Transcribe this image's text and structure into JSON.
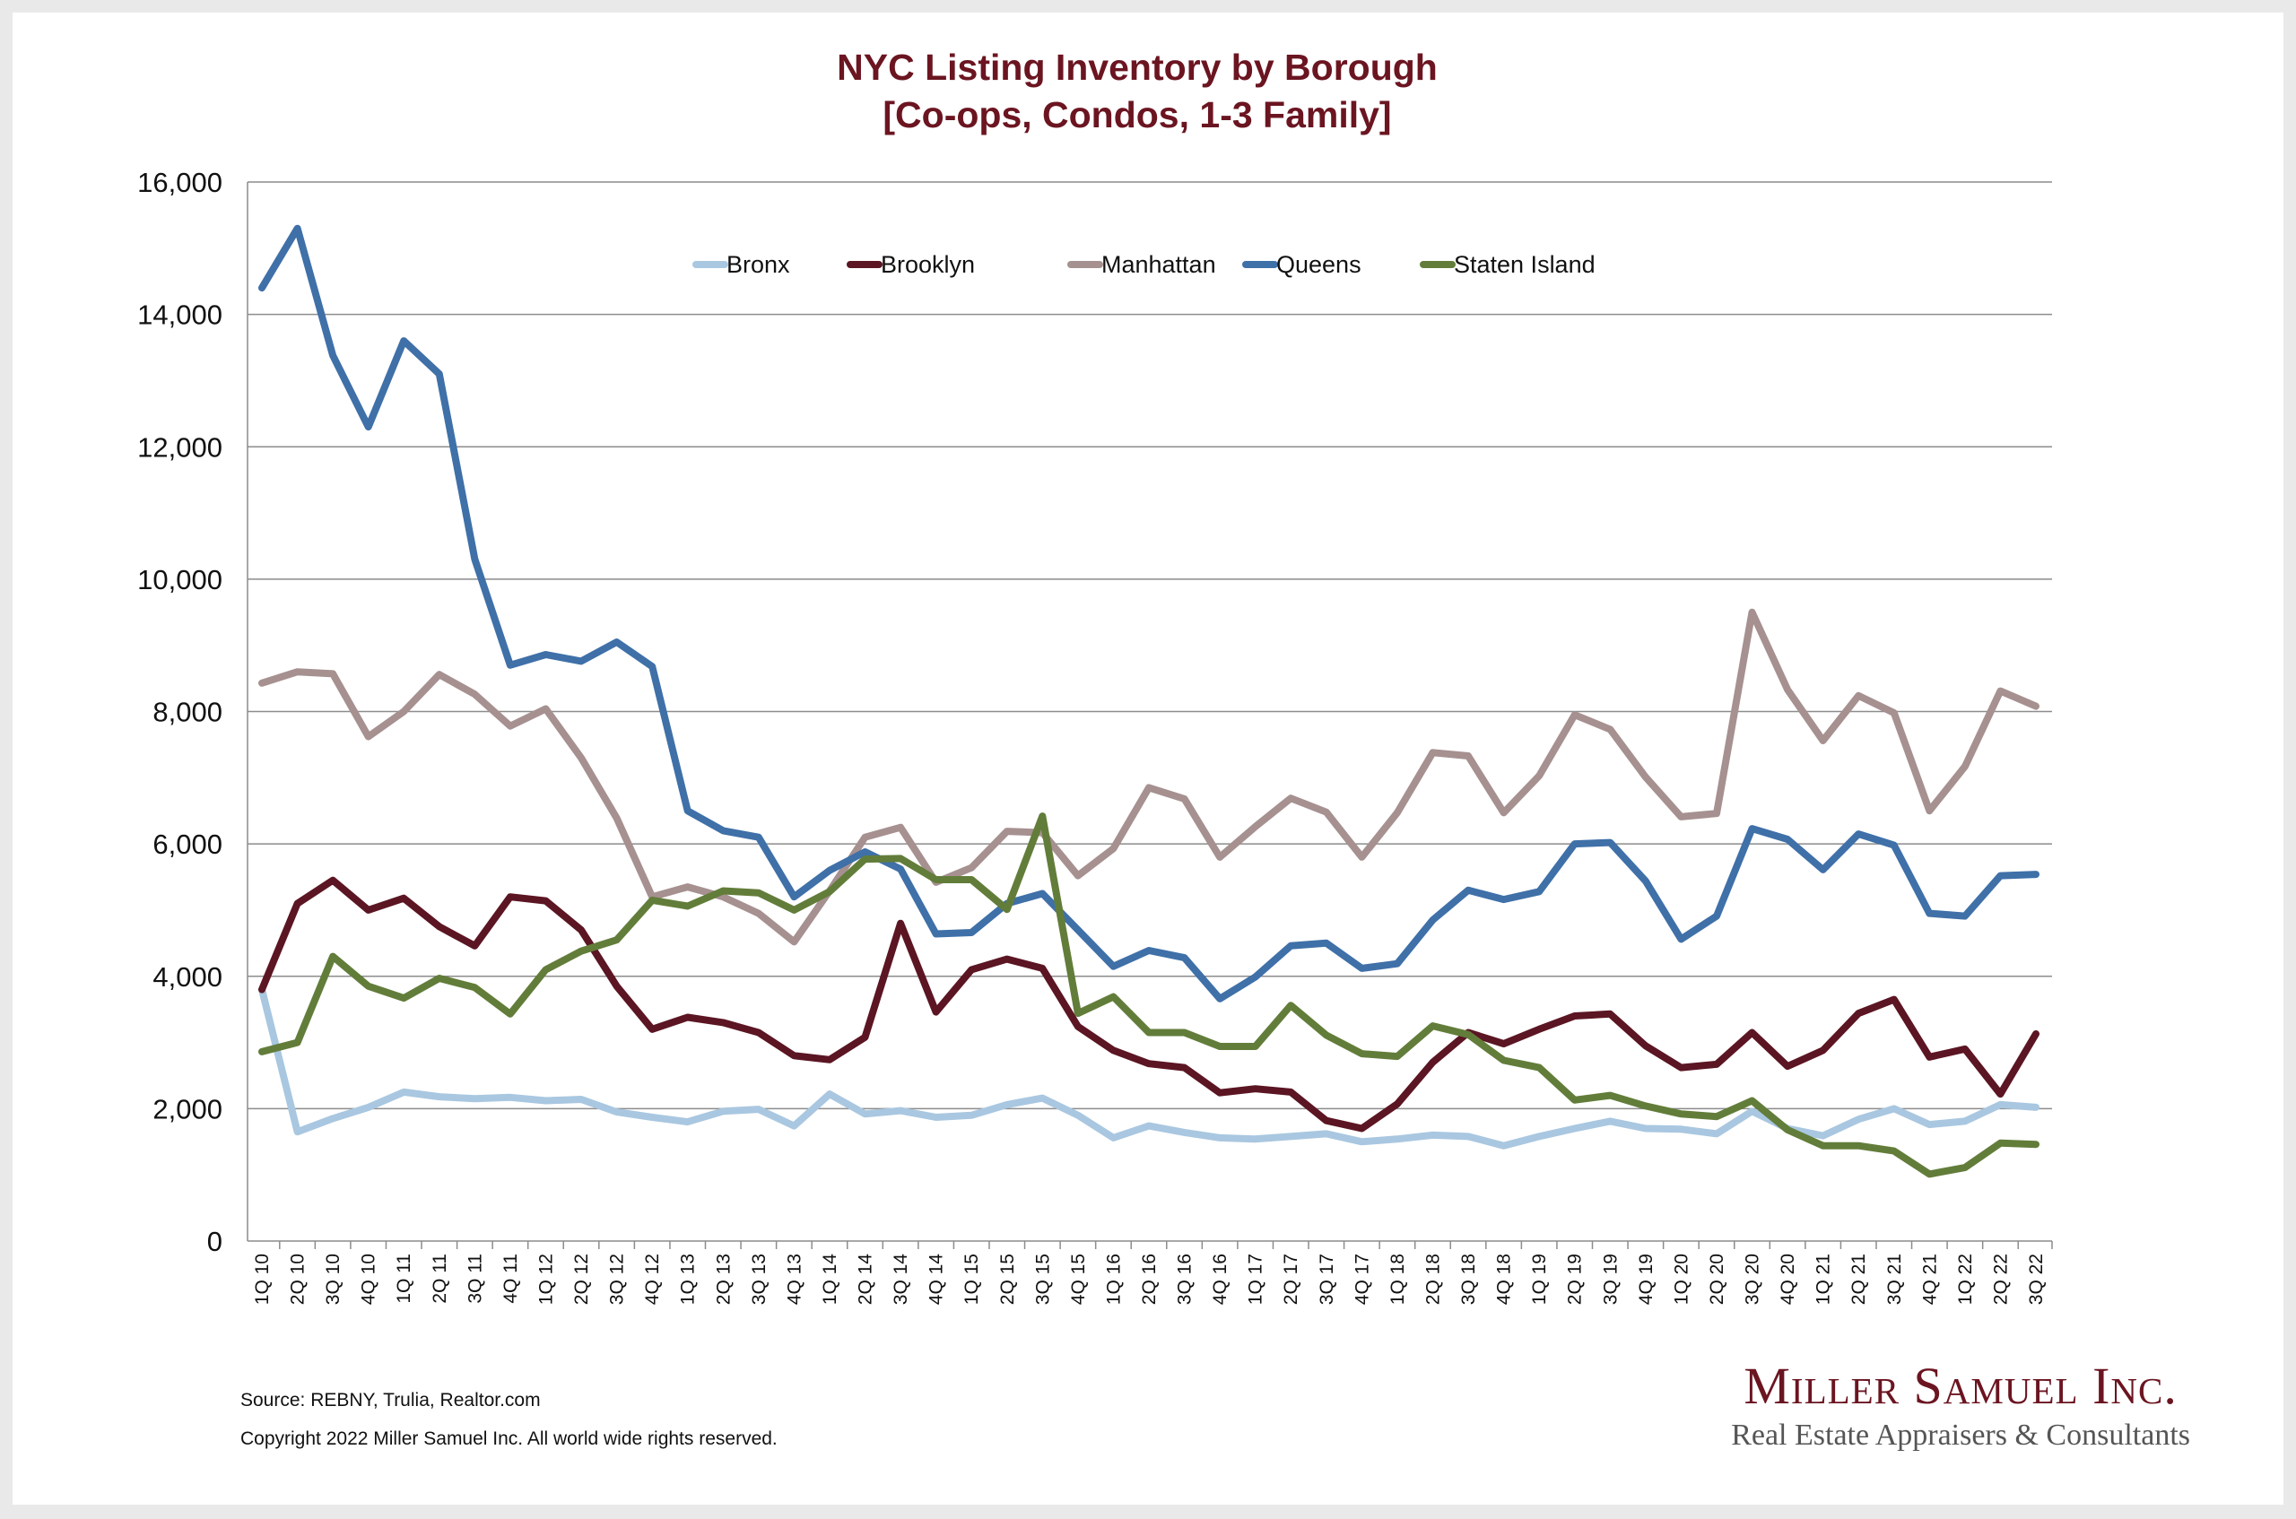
{
  "chart_data": {
    "type": "line",
    "title": "NYC Listing Inventory by Borough",
    "subtitle": "[Co-ops, Condos, 1-3 Family]",
    "xlabel": "",
    "ylabel": "",
    "ylim": [
      0,
      16000
    ],
    "yticks": [
      "0",
      "2,000",
      "4,000",
      "6,000",
      "8,000",
      "10,000",
      "12,000",
      "14,000",
      "16,000"
    ],
    "grid": true,
    "legend_position": "top-center",
    "categories": [
      "1Q 10",
      "2Q 10",
      "3Q 10",
      "4Q 10",
      "1Q 11",
      "2Q 11",
      "3Q 11",
      "4Q 11",
      "1Q 12",
      "2Q 12",
      "3Q 12",
      "4Q 12",
      "1Q 13",
      "2Q 13",
      "3Q 13",
      "4Q 13",
      "1Q 14",
      "2Q 14",
      "3Q 14",
      "4Q 14",
      "1Q 15",
      "2Q 15",
      "3Q 15",
      "4Q 15",
      "1Q 16",
      "2Q 16",
      "3Q 16",
      "4Q 16",
      "1Q 17",
      "2Q 17",
      "3Q 17",
      "4Q 17",
      "1Q 18",
      "2Q 18",
      "3Q 18",
      "4Q 18",
      "1Q 19",
      "2Q 19",
      "3Q 19",
      "4Q 19",
      "1Q 20",
      "2Q 20",
      "3Q 20",
      "4Q 20",
      "1Q 21",
      "2Q 21",
      "3Q 21",
      "4Q 21",
      "1Q 22",
      "2Q 22",
      "3Q 22"
    ],
    "series": [
      {
        "name": "Bronx",
        "color": "#a9c7e0",
        "values": [
          3800,
          1650,
          1850,
          2020,
          2250,
          2180,
          2150,
          2170,
          2120,
          2140,
          1950,
          1870,
          1800,
          1960,
          1990,
          1740,
          2220,
          1920,
          1970,
          1870,
          1900,
          2060,
          2160,
          1900,
          1560,
          1740,
          1640,
          1560,
          1540,
          1580,
          1620,
          1500,
          1540,
          1600,
          1580,
          1440,
          1580,
          1700,
          1810,
          1700,
          1690,
          1620,
          1960,
          1700,
          1590,
          1840,
          2000,
          1760,
          1810,
          2060,
          2020
        ]
      },
      {
        "name": "Brooklyn",
        "color": "#5b1523",
        "values": [
          3800,
          5100,
          5450,
          5000,
          5180,
          4750,
          4460,
          5200,
          5140,
          4700,
          3850,
          3200,
          3380,
          3300,
          3150,
          2800,
          2740,
          3080,
          4800,
          3460,
          4100,
          4260,
          4120,
          3240,
          2880,
          2680,
          2620,
          2240,
          2300,
          2250,
          1820,
          1700,
          2070,
          2700,
          3150,
          2980,
          3200,
          3400,
          3430,
          2950,
          2620,
          2670,
          3150,
          2640,
          2880,
          3440,
          3650,
          2780,
          2900,
          2220,
          3130
        ]
      },
      {
        "name": "Manhattan",
        "color": "#a69090",
        "values": [
          8430,
          8600,
          8570,
          7620,
          8000,
          8560,
          8260,
          7780,
          8040,
          7300,
          6390,
          5200,
          5350,
          5200,
          4950,
          4520,
          5290,
          6100,
          6250,
          5420,
          5640,
          6190,
          6170,
          5520,
          5930,
          6850,
          6680,
          5800,
          6260,
          6690,
          6480,
          5800,
          6470,
          7380,
          7330,
          6470,
          7030,
          7950,
          7730,
          7010,
          6410,
          6460,
          9500,
          8330,
          7560,
          8240,
          7980,
          6500,
          7170,
          8310,
          8080
        ]
      },
      {
        "name": "Queens",
        "color": "#3f70a8",
        "values": [
          14400,
          15300,
          13380,
          12300,
          13600,
          13100,
          10300,
          8700,
          8860,
          8760,
          9050,
          8680,
          6500,
          6200,
          6100,
          5200,
          5600,
          5880,
          5620,
          4640,
          4660,
          5100,
          5250,
          4700,
          4150,
          4390,
          4280,
          3660,
          3990,
          4460,
          4500,
          4120,
          4190,
          4850,
          5300,
          5160,
          5280,
          6000,
          6020,
          5440,
          4560,
          4910,
          6230,
          6070,
          5610,
          6150,
          5980,
          4950,
          4910,
          5520,
          5540
        ]
      },
      {
        "name": "Staten Island",
        "color": "#627d3a",
        "values": [
          2860,
          3000,
          4300,
          3850,
          3670,
          3970,
          3830,
          3430,
          4100,
          4380,
          4550,
          5150,
          5060,
          5290,
          5260,
          5000,
          5280,
          5770,
          5780,
          5460,
          5460,
          5010,
          6420,
          3440,
          3690,
          3150,
          3150,
          2940,
          2940,
          3560,
          3110,
          2830,
          2790,
          3250,
          3120,
          2730,
          2620,
          2130,
          2200,
          2040,
          1920,
          1880,
          2120,
          1680,
          1440,
          1440,
          1360,
          1010,
          1110,
          1480,
          1460
        ]
      }
    ]
  },
  "footer": {
    "source": "Source: REBNY, Trulia, Realtor.com",
    "copyright": "Copyright 2022 Miller Samuel Inc.  All world wide rights reserved."
  },
  "logo": {
    "name": "Miller Samuel Inc.",
    "tagline": "Real Estate Appraisers & Consultants"
  }
}
